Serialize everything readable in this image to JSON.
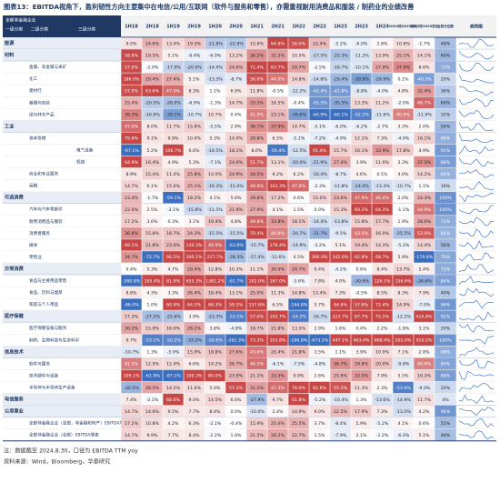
{
  "title": "图表13：EBITDA视角下，盈利韧性方向主要集中在电信/公用/互联网（软件与服务和零售），亦需重视耐用消费品和服装 / 制药业的业绩改善",
  "header": {
    "top": "全部非金融企业",
    "levels": [
      "一级分类",
      "二级分类",
      "三级分类"
    ],
    "columns": [
      "1H18",
      "2H18",
      "1H19",
      "2H19",
      "1H20",
      "2H20",
      "1H21",
      "2H21",
      "1H22",
      "2H22",
      "1H23",
      "2H23",
      "1H24",
      "1H24较2H23变化",
      "2H23较1H23变化",
      "当前分位数"
    ],
    "trend": "趋势图"
  },
  "rows": [
    {
      "level": 1,
      "label": "能源",
      "cells": [
        "9.5%",
        "24.6%",
        "13.4%",
        "19.3%",
        "-21.8%",
        "-22.9%",
        "15.6%",
        "64.8%",
        "56.0%",
        "22.4%",
        "-5.2%",
        "-6.0%",
        "2.8%",
        "10.8%",
        "-1.7%",
        "48%"
      ]
    },
    {
      "level": 1,
      "label": "材料",
      "cells": [
        "58.8%",
        "19.5%",
        "5.1%",
        "-6.4%",
        "-6.0%",
        "13.2%",
        "36.2%",
        "31.2%",
        "10.5%",
        "-17.5%",
        "-25.3%",
        "-11.2%",
        "13.9%",
        "25.1%",
        "14.1%",
        "60%"
      ]
    },
    {
      "level": 2,
      "label": "金属、非金属与采矿",
      "cells": [
        "57.6%",
        "-2.0%",
        "-17.9%",
        "-20.9%",
        "-14.4%",
        "24.6%",
        "71.4%",
        "63.7%",
        "29.7%",
        "-2.5%",
        "-16.7%",
        "-10.1%",
        "27.9%",
        "37.9%",
        "8.6%",
        "72%"
      ]
    },
    {
      "level": 2,
      "label": "化工",
      "cells": [
        "186.0%",
        "29.4%",
        "27.4%",
        "5.1%",
        "-13.3%",
        "-8.7%",
        "56.0%",
        "44.0%",
        "14.8%",
        "-14.8%",
        "-29.4%",
        "-39.9%",
        "-29.9%",
        "0.1%",
        "-40.3%",
        "20%"
      ]
    },
    {
      "level": 2,
      "label": "建材行",
      "cells": [
        "57.0%",
        "63.6%",
        "47.0%",
        "8.3%",
        "1.1%",
        "6.9%",
        "11.8%",
        "-0.5%",
        "-12.2%",
        "-42.4%",
        "-41.8%",
        "-8.8%",
        "-4.0%",
        "4.8%",
        "32.4%",
        "36%"
      ]
    },
    {
      "level": 2,
      "label": "容器与包装",
      "cells": [
        "25.4%",
        "-20.5%",
        "-26.0%",
        "-6.9%",
        "-1.3%",
        "14.7%",
        "33.3%",
        "16.5%",
        "-0.4%",
        "-45.5%",
        "-35.5%",
        "13.3%",
        "11.2%",
        "-2.0%",
        "48.7%",
        "60%"
      ]
    },
    {
      "level": 2,
      "label": "纸与林木产品",
      "cells": [
        "39.3%",
        "-16.9%",
        "-39.1%",
        "-10.7%",
        "10.7%",
        "0.4%",
        "41.9%",
        "23.1%",
        "-39.6%",
        "-60.9%",
        "-60.1%",
        "-52.1%",
        "-11.6%",
        "40.9%",
        "-11.9%",
        "32%"
      ]
    },
    {
      "level": 1,
      "label": "工业",
      "cells": [
        "47.0%",
        "8.0%",
        "11.7%",
        "15.8%",
        "-5.5%",
        "2.9%",
        "36.1%",
        "37.9%",
        "14.7%",
        "-5.1%",
        "-6.0%",
        "-6.2%",
        "-2.7%",
        "3.3%",
        "2.0%",
        "56%"
      ]
    },
    {
      "level": 2,
      "label": "资本货物",
      "cells": [
        "79.8%",
        "9.1%",
        "9.9%",
        "10.0%",
        "5.3%",
        "14.0%",
        "28.8%",
        "6.5%",
        "-5.1%",
        "-7.2%",
        "-4.9%",
        "12.1%",
        "7.3%",
        "-4.9%",
        "16.1%",
        "68%"
      ]
    },
    {
      "level": 3,
      "label": "电气设备",
      "cells": [
        "-67.1%",
        "5.2%",
        "106.7%",
        "6.6%",
        "-14.5%",
        "18.1%",
        "8.6%",
        "-56.4%",
        "-12.5%",
        "91.4%",
        "15.7%",
        "16.1%",
        "33.9%",
        "17.8%",
        "4.9%",
        "92%"
      ]
    },
    {
      "level": 3,
      "label": "机械",
      "cells": [
        "64.9%",
        "16.4%",
        "4.9%",
        "5.3%",
        "-7.1%",
        "24.6%",
        "51.7%",
        "13.1%",
        "-20.0%",
        "-21.9%",
        "27.4%",
        "3.9%",
        "11.0%",
        "3.3%",
        "37.3%",
        "88%"
      ]
    },
    {
      "level": 2,
      "label": "商业和专业服务",
      "cells": [
        "8.9%",
        "15.4%",
        "11.4%",
        "25.8%",
        "14.0%",
        "24.9%",
        "34.5%",
        "9.2%",
        "6.2%",
        "-16.4%",
        "-8.7%",
        "4.6%",
        "0.5%",
        "4.0%",
        "14.2%",
        "64%"
      ]
    },
    {
      "level": 2,
      "label": "运输",
      "cells": [
        "14.7%",
        "6.1%",
        "15.0%",
        "25.1%",
        "-16.3%",
        "-15.0%",
        "49.8%",
        "103.3%",
        "47.8%",
        "-2.3%",
        "-11.8%",
        "-24.0%",
        "-13.3%",
        "-10.7%",
        "1.1%",
        "16%"
      ]
    },
    {
      "level": 1,
      "label": "可选消费",
      "cells": [
        "23.4%",
        "-1.7%",
        "-59.1%",
        "18.2%",
        "4.1%",
        "5.6%",
        "29.8%",
        "17.2%",
        "0.6%",
        "15.0%",
        "23.6%",
        "47.9%",
        "46.4%",
        "2.0%",
        "24.3%",
        "100%"
      ]
    },
    {
      "level": 2,
      "label": "汽车与汽车零部件",
      "cells": [
        "22.0%",
        "2.5%",
        "-3.1%",
        "-15.8%",
        "-11.5%",
        "21.9%",
        "27.9%",
        "4.1%",
        "1.5%",
        "0.0%",
        "15.3%",
        "60.2%",
        "64.3%",
        "-1.1%",
        "44.9%",
        "100%"
      ]
    },
    {
      "level": 2,
      "label": "耐用消费品与服装",
      "cells": [
        "17.2%",
        "3.6%",
        "0.3%",
        "3.1%",
        "19.4%",
        "4.8%",
        "49.8%",
        "33.8%",
        "18.1%",
        "-14.4%",
        "-13.8%",
        "15.8%",
        "17.7%",
        "1.9%",
        "28.6%",
        "72%"
      ]
    },
    {
      "level": 2,
      "label": "消费者服务",
      "cells": [
        "36.8%",
        "15.8%",
        "18.7%",
        "24.3%",
        "-15.5%",
        "-15.5%",
        "70.4%",
        "40.8%",
        "-20.7%",
        "-31.7%",
        "-9.5%",
        "43.5%",
        "16.0%",
        "-25.5%",
        "53.0%",
        "64%"
      ]
    },
    {
      "level": 2,
      "label": "媒体",
      "cells": [
        "69.1%",
        "21.8%",
        "23.0%",
        "130.3%",
        "49.9%",
        "-63.8%",
        "-15.7%",
        "178.4%",
        "-14.9%",
        "-3.2%",
        "5.1%",
        "19.4%",
        "14.3%",
        "-5.2%",
        "14.4%",
        "56%"
      ]
    },
    {
      "level": 2,
      "label": "零售业",
      "cells": [
        "34.7%",
        "-72.7%",
        "66.5%",
        "200.1%",
        "227.7%",
        "-28.3%",
        "-17.4%",
        "-12.6%",
        "4.5%",
        "306.9%",
        "242.6%",
        "62.8%",
        "68.7%",
        "5.9%",
        "-179.8%",
        "76%"
      ]
    },
    {
      "level": 1,
      "label": "日常消费",
      "cells": [
        "0.4%",
        "5.3%",
        "4.7%",
        "29.4%",
        "12.8%",
        "10.3%",
        "11.1%",
        "30.0%",
        "29.7%",
        "9.4%",
        "-4.2%",
        "0.6%",
        "8.4%",
        "13.7%",
        "5.4%",
        "72%"
      ]
    },
    {
      "level": 2,
      "label": "食品与主要用品零售",
      "cells": [
        "-580.8%",
        "195.4%",
        "81.9%",
        "655.3%",
        "1381.2%",
        "-61.7%",
        "102.0%",
        "167.0%",
        "-3.6%",
        "7.8%",
        "4.0%",
        "-30.6%",
        "126.1%",
        "156.6%",
        "-34.6%",
        "84%"
      ]
    },
    {
      "level": 2,
      "label": "食品、饮料与烟草",
      "cells": [
        "8.8%",
        "4.3%",
        "3.3%",
        "26.4%",
        "18.4%",
        "13.1%",
        "25.0%",
        "11.3%",
        "14.8%",
        "13.4%",
        "7.3%",
        "-0.5%",
        "8.5%",
        "8.3%",
        "7.9%",
        "40%"
      ]
    },
    {
      "level": 2,
      "label": "家庭与个人用品",
      "cells": [
        "-86.0%",
        "1.0%",
        "60.9%",
        "64.5%",
        "68.3%",
        "59.5%",
        "137.6%",
        "6.5%",
        "-144.8%",
        "5.7%",
        "64.6%",
        "57.6%",
        "72.4%",
        "14.9%",
        "-7.0%",
        "96%"
      ]
    },
    {
      "level": 1,
      "label": "医疗保健",
      "cells": [
        "17.3%",
        "-27.2%",
        "-25.6%",
        "3.9%",
        "-23.3%",
        "-53.1%",
        "57.6%",
        "102.7%",
        "-54.2%",
        "-16.7%",
        "223.7%",
        "87.7%",
        "75.5%",
        "-12.2%",
        "410.8%",
        "92%"
      ]
    },
    {
      "level": 2,
      "label": "医疗保健设备与服务",
      "cells": [
        "30.2%",
        "15.9%",
        "16.0%",
        "28.2%",
        "3.8%",
        "-4.8%",
        "18.7%",
        "21.8%",
        "13.5%",
        "2.9%",
        "1.6%",
        "0.4%",
        "2.2%",
        "-1.8%",
        "3.1%",
        "20%"
      ]
    },
    {
      "level": 2,
      "label": "制药、生物科技与生命科学",
      "cells": [
        "9.7%",
        "-53.1%",
        "-50.2%",
        "-33.2%",
        "-50.6%",
        "-262.3%",
        "73.3%",
        "103.8%",
        "-196.8%",
        "-673.5%",
        "447.1%",
        "463.4%",
        "668.4%",
        "205.0%",
        "910.5%",
        "100%"
      ]
    },
    {
      "level": 1,
      "label": "信息技术",
      "cells": [
        "-10.7%",
        "1.3%",
        "-5.9%",
        "15.9%",
        "18.8%",
        "27.6%",
        "43.6%",
        "20.4%",
        "21.8%",
        "3.5%",
        "1.1%",
        "3.9%",
        "10.9%",
        "7.1%",
        "2.8%",
        "68%"
      ]
    },
    {
      "level": 2,
      "label": "软件与服务",
      "cells": [
        "41.5%",
        "12.9%",
        "12.4%",
        "6.6%",
        "14.2%",
        "26.7%",
        "46.5%",
        "-6.1%",
        "-7.5%",
        "-4.8%",
        "36.7%",
        "29.8%",
        "20.0%",
        "-9.8%",
        "40.9%",
        "80%"
      ]
    },
    {
      "level": 2,
      "label": "技术硬件与设备",
      "cells": [
        "109.1%",
        "-61.9%",
        "-87.1%",
        "109.3%",
        "80.0%",
        "23.9%",
        "21.1%",
        "33.3%",
        "9.9%",
        "2.6%",
        "25.6%",
        "33.5%",
        "7.9%",
        "5.5%",
        "16.3%",
        "88%"
      ]
    },
    {
      "level": 2,
      "label": "半导体与半导体生产设备",
      "cells": [
        "-30.5%",
        "28.5%",
        "14.2%",
        "11.6%",
        "5.0%",
        "57.3%",
        "31.2%",
        "47.3%",
        "78.0%",
        "82.8%",
        "55.5%",
        "11.3%",
        "2.3%",
        "-53.0%",
        "-9.0%",
        "20%"
      ]
    },
    {
      "level": 1,
      "label": "电信服务",
      "cells": [
        "7.4%",
        "-2.1%",
        "68.6%",
        "9.0%",
        "14.5%",
        "6.6%",
        "-27.9%",
        "9.7%",
        "61.8%",
        "-5.2%",
        "-10.4%",
        "1.3%",
        "-13.6%",
        "-14.9%",
        "11.7%",
        "4%"
      ]
    },
    {
      "level": 1,
      "label": "公用事业",
      "cells": [
        "14.7%",
        "14.6%",
        "9.5%",
        "7.7%",
        "8.4%",
        "0.0%",
        "-10.0%",
        "2.4%",
        "14.9%",
        "9.0%",
        "22.5%",
        "17.9%",
        "7.3%",
        "-13.5%",
        "4.2%",
        "96%"
      ]
    },
    {
      "level": 2,
      "label": "全部非金融企业（全部，非金融和地产）EBITDA增速",
      "cells": [
        "17.2%",
        "10.8%",
        "4.2%",
        "6.3%",
        "-2.1%",
        "-0.4%",
        "15.9%",
        "25.0%",
        "25.5%",
        "3.7%",
        "-8.4%",
        "5.9%",
        "-5.2%",
        "4.1%",
        "0.6%",
        "52%"
      ]
    },
    {
      "level": 2,
      "label": "全部非金融企业（全部）EBITDA增速",
      "cells": [
        "14.7%",
        "9.9%",
        "7.7%",
        "8.4%",
        "-2.2%",
        "1.0%",
        "21.5%",
        "28.2%",
        "22.7%",
        "1.5%",
        "-7.9%",
        "2.1%",
        "-2.2%",
        "-6.0%",
        "5.1%",
        "48%"
      ]
    }
  ],
  "notes": [
    "注：数据截至 2024.8.30，口径为 EBITDA TTM yoy",
    "资料来源：Wind，Bloomberg，华泰研究"
  ]
}
